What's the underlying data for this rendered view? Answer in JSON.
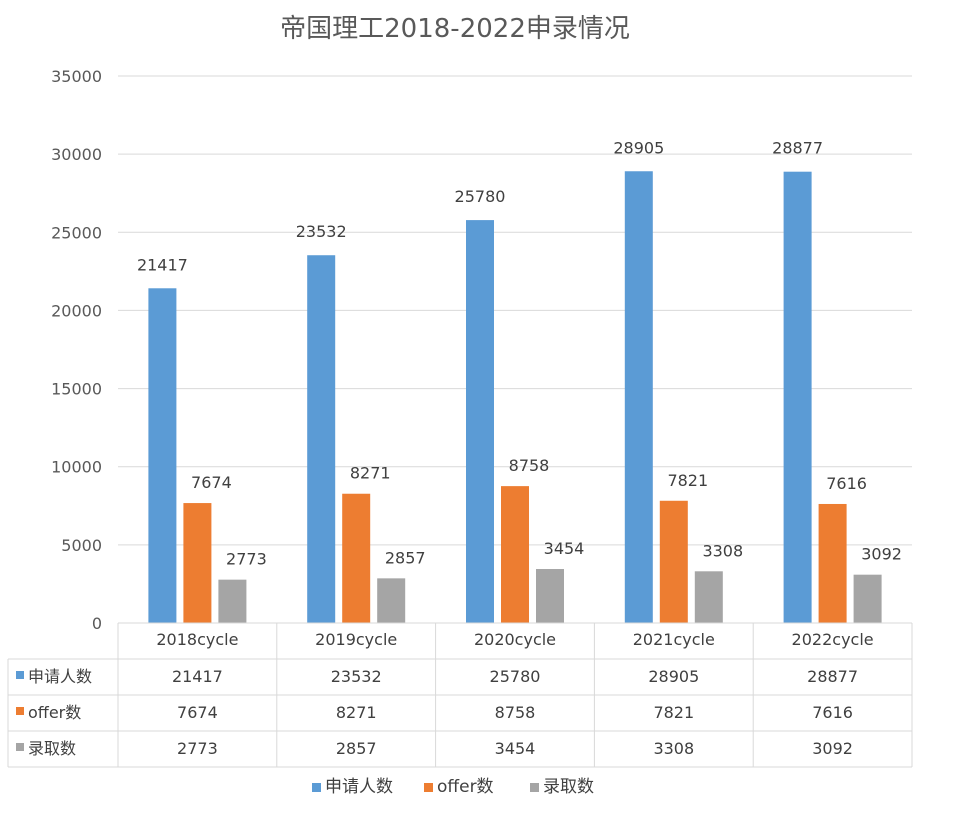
{
  "chart_data": {
    "type": "bar",
    "title": "帝国理工2018-2022申录情况",
    "categories": [
      "2018cycle",
      "2019cycle",
      "2020cycle",
      "2021cycle",
      "2022cycle"
    ],
    "series": [
      {
        "name": "申请人数",
        "color": "#5B9BD5",
        "values": [
          21417,
          23532,
          25780,
          28905,
          28877
        ]
      },
      {
        "name": "offer数",
        "color": "#ED7D31",
        "values": [
          7674,
          8271,
          8758,
          7821,
          7616
        ]
      },
      {
        "name": "录取数",
        "color": "#A5A5A5",
        "values": [
          2773,
          2857,
          3454,
          3308,
          3092
        ]
      }
    ],
    "ylim": [
      0,
      35000
    ],
    "yticks": [
      0,
      5000,
      10000,
      15000,
      20000,
      25000,
      30000,
      35000
    ],
    "grid": true,
    "data_table": true,
    "legend_position": "bottom"
  }
}
